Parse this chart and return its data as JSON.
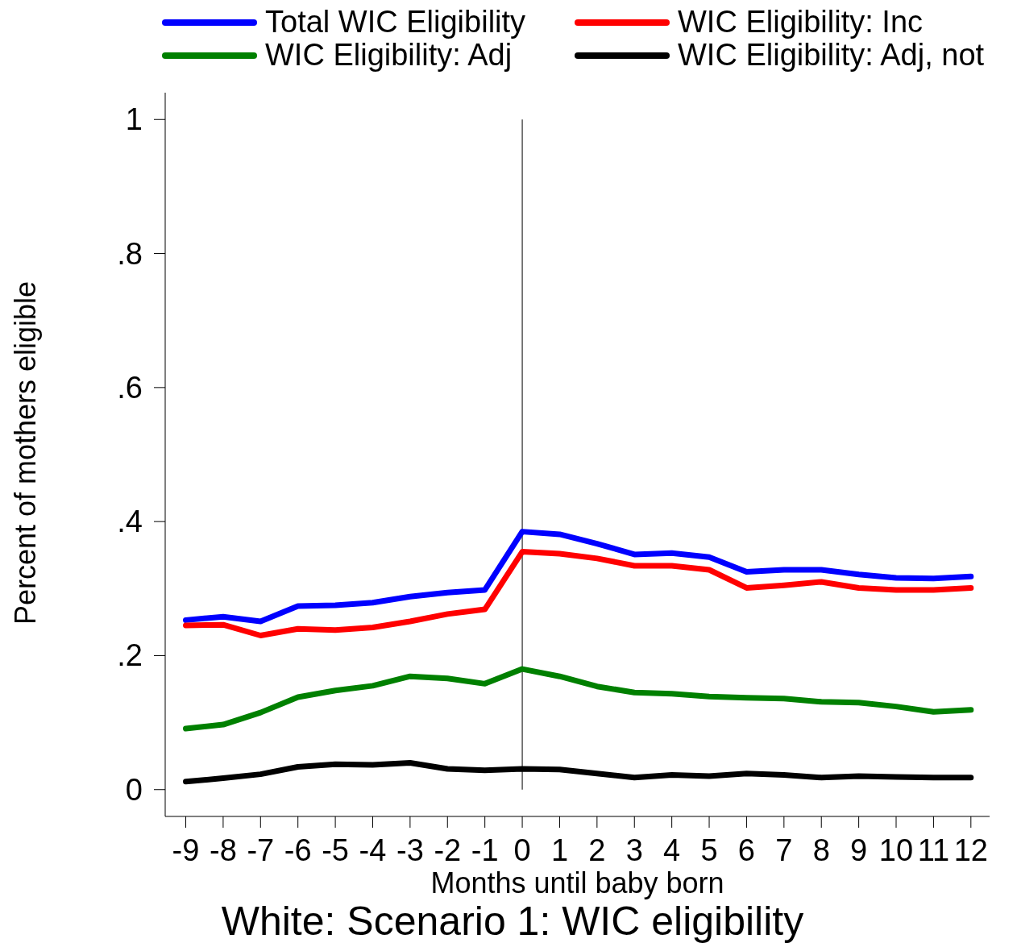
{
  "chart_data": {
    "type": "line",
    "title": "White: Scenario 1: WIC eligibility",
    "xlabel": "Months until baby born",
    "ylabel": "Percent of mothers eligible",
    "x": [
      -9,
      -8,
      -7,
      -6,
      -5,
      -4,
      -3,
      -2,
      -1,
      0,
      1,
      2,
      3,
      4,
      5,
      6,
      7,
      8,
      9,
      10,
      11,
      12
    ],
    "series": [
      {
        "name": "Total WIC Eligibility",
        "color": "#0000ff",
        "values": [
          0.253,
          0.258,
          0.251,
          0.274,
          0.275,
          0.279,
          0.288,
          0.294,
          0.298,
          0.385,
          0.381,
          0.367,
          0.351,
          0.353,
          0.347,
          0.325,
          0.328,
          0.328,
          0.321,
          0.316,
          0.315,
          0.318
        ]
      },
      {
        "name": "WIC Eligibility: Inc",
        "color": "#ff0000",
        "values": [
          0.245,
          0.246,
          0.23,
          0.24,
          0.238,
          0.242,
          0.251,
          0.262,
          0.269,
          0.355,
          0.352,
          0.345,
          0.334,
          0.334,
          0.328,
          0.301,
          0.305,
          0.31,
          0.301,
          0.298,
          0.298,
          0.301
        ]
      },
      {
        "name": "WIC Eligibility: Adj",
        "color": "#008000",
        "values": [
          0.091,
          0.097,
          0.115,
          0.138,
          0.148,
          0.155,
          0.169,
          0.166,
          0.158,
          0.18,
          0.169,
          0.154,
          0.145,
          0.143,
          0.139,
          0.137,
          0.136,
          0.131,
          0.13,
          0.124,
          0.116,
          0.119
        ]
      },
      {
        "name": "WIC Eligibility: Adj, not",
        "color": "#000000",
        "values": [
          0.012,
          0.017,
          0.023,
          0.034,
          0.038,
          0.037,
          0.04,
          0.031,
          0.029,
          0.031,
          0.03,
          0.024,
          0.018,
          0.022,
          0.02,
          0.024,
          0.022,
          0.018,
          0.02,
          0.019,
          0.018,
          0.018
        ]
      }
    ],
    "xlim": [
      -9.55,
      12.5
    ],
    "xticks": [
      -9,
      -8,
      -7,
      -6,
      -5,
      -4,
      -3,
      -2,
      -1,
      0,
      1,
      2,
      3,
      4,
      5,
      6,
      7,
      8,
      9,
      10,
      11,
      12
    ],
    "ylim": [
      -0.04,
      1.04
    ],
    "yticks": [
      {
        "value": 0,
        "label": "0"
      },
      {
        "value": 0.2,
        "label": ".2"
      },
      {
        "value": 0.4,
        "label": ".4"
      },
      {
        "value": 0.6,
        "label": ".6"
      },
      {
        "value": 0.8,
        "label": ".8"
      },
      {
        "value": 1,
        "label": "1"
      }
    ],
    "ref_lines": [
      {
        "axis": "x",
        "value": 0,
        "color": "#000000"
      }
    ],
    "legend": "top",
    "grid": false,
    "marker": "none",
    "line_style": "solid"
  }
}
